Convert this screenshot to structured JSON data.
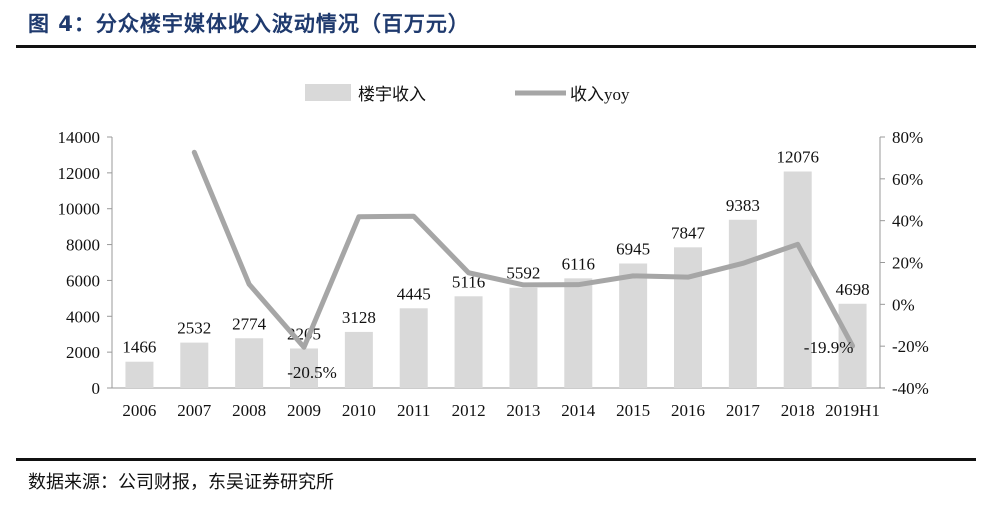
{
  "header": {
    "title": "图 4：分众楼宇媒体收入波动情况（百万元）"
  },
  "footer": {
    "source": "数据来源：公司财报，东吴证券研究所"
  },
  "colors": {
    "bar": "#d9d9d9",
    "line": "#a6a6a6",
    "title": "#1f3a6e"
  },
  "chart_data": {
    "type": "bar",
    "categories": [
      "2006",
      "2007",
      "2008",
      "2009",
      "2010",
      "2011",
      "2012",
      "2013",
      "2014",
      "2015",
      "2016",
      "2017",
      "2018",
      "2019H1"
    ],
    "series": [
      {
        "name": "楼宇收入",
        "type": "bar",
        "axis": "left",
        "values": [
          1466,
          2532,
          2774,
          2205,
          3128,
          4445,
          5116,
          5592,
          6116,
          6945,
          7847,
          9383,
          12076,
          4698
        ]
      },
      {
        "name": "收入yoy",
        "type": "line",
        "axis": "right",
        "values": [
          null,
          72.7,
          9.6,
          -20.5,
          41.9,
          42.1,
          15.1,
          9.3,
          9.4,
          13.6,
          13.0,
          19.6,
          28.7,
          -19.9
        ]
      }
    ],
    "bar_labels": [
      "1466",
      "2532",
      "2774",
      "2205",
      "3128",
      "4445",
      "5116",
      "5592",
      "6116",
      "6945",
      "7847",
      "9383",
      "12076",
      "4698"
    ],
    "line_labels": [
      {
        "index": 3,
        "text": "-20.5%"
      },
      {
        "index": 13,
        "text": "-19.9%"
      }
    ],
    "y_left": {
      "min": 0,
      "max": 14000,
      "ticks": [
        "0",
        "2000",
        "4000",
        "6000",
        "8000",
        "10000",
        "12000",
        "14000"
      ]
    },
    "y_right": {
      "min": -40,
      "max": 80,
      "ticks": [
        "-40%",
        "-20%",
        "0%",
        "20%",
        "40%",
        "60%",
        "80%"
      ]
    },
    "legend_position": "top-center",
    "grid": false
  }
}
